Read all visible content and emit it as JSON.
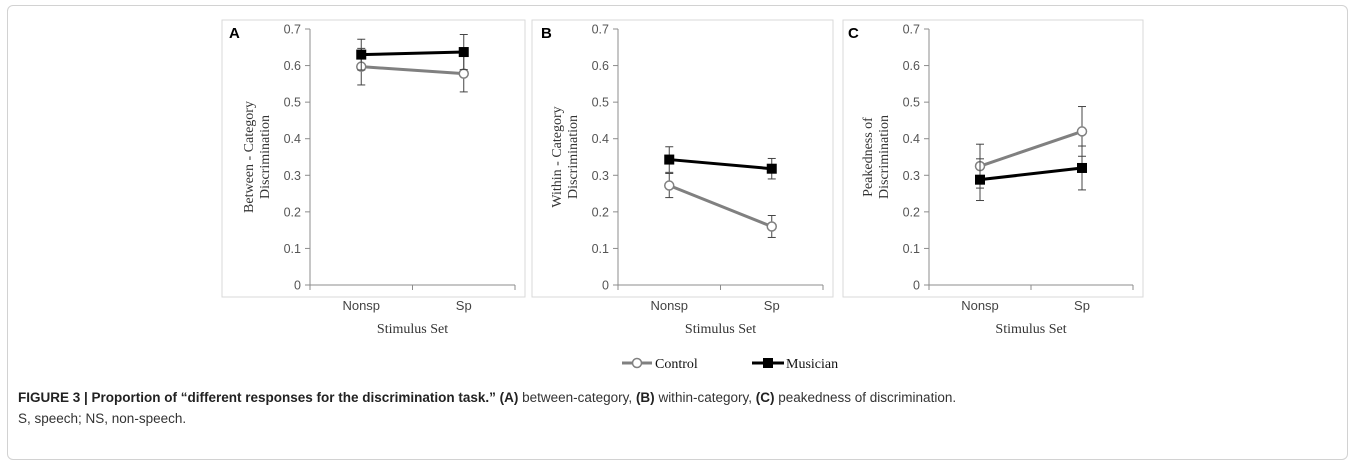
{
  "legend": [
    {
      "name": "Control",
      "color": "#808080",
      "marker": "open-circle"
    },
    {
      "name": "Musician",
      "color": "#000000",
      "marker": "filled-square"
    }
  ],
  "chart_data": [
    {
      "panel": "A",
      "type": "line",
      "categories": [
        "Nonsp",
        "Sp"
      ],
      "xlabel": "Stimulus  Set",
      "ylabel_lines": [
        "Between  - Category",
        "Discrimination"
      ],
      "ylim": [
        0,
        0.7
      ],
      "yticks": [
        "0",
        "0.1",
        "0.2",
        "0.3",
        "0.4",
        "0.5",
        "0.6",
        "0.7"
      ],
      "grid": false,
      "series": [
        {
          "name": "Control",
          "values": [
            0.597,
            0.578
          ],
          "errors": [
            0.05,
            0.05
          ]
        },
        {
          "name": "Musician",
          "values": [
            0.63,
            0.637
          ],
          "errors": [
            0.042,
            0.048
          ]
        }
      ]
    },
    {
      "panel": "B",
      "type": "line",
      "categories": [
        "Nonsp",
        "Sp"
      ],
      "xlabel": "Stimulus  Set",
      "ylabel_lines": [
        "Within  - Category",
        "Discrimination"
      ],
      "ylim": [
        0,
        0.7
      ],
      "yticks": [
        "0",
        "0.1",
        "0.2",
        "0.3",
        "0.4",
        "0.5",
        "0.6",
        "0.7"
      ],
      "grid": false,
      "series": [
        {
          "name": "Control",
          "values": [
            0.272,
            0.16
          ],
          "errors": [
            0.033,
            0.03
          ]
        },
        {
          "name": "Musician",
          "values": [
            0.343,
            0.318
          ],
          "errors": [
            0.035,
            0.028
          ]
        }
      ]
    },
    {
      "panel": "C",
      "type": "line",
      "categories": [
        "Nonsp",
        "Sp"
      ],
      "xlabel": "Stimulus  Set",
      "ylabel_lines": [
        "Peakedness of",
        "Discrimination"
      ],
      "ylim": [
        0,
        0.7
      ],
      "yticks": [
        "0",
        "0.1",
        "0.2",
        "0.3",
        "0.4",
        "0.5",
        "0.6",
        "0.7"
      ],
      "grid": false,
      "series": [
        {
          "name": "Control",
          "values": [
            0.325,
            0.42
          ],
          "errors": [
            0.06,
            0.068
          ]
        },
        {
          "name": "Musician",
          "values": [
            0.288,
            0.32
          ],
          "errors": [
            0.057,
            0.06
          ]
        }
      ]
    }
  ],
  "caption": {
    "lead": "FIGURE 3 | Proportion of “different responses for the discrimination task.”",
    "a_label": "(A)",
    "a_text": " between-category, ",
    "b_label": "(B)",
    "b_text": " within-category, ",
    "c_label": "(C)",
    "c_text": " peakedness of discrimination.",
    "line2": "S, speech; NS, non-speech."
  }
}
